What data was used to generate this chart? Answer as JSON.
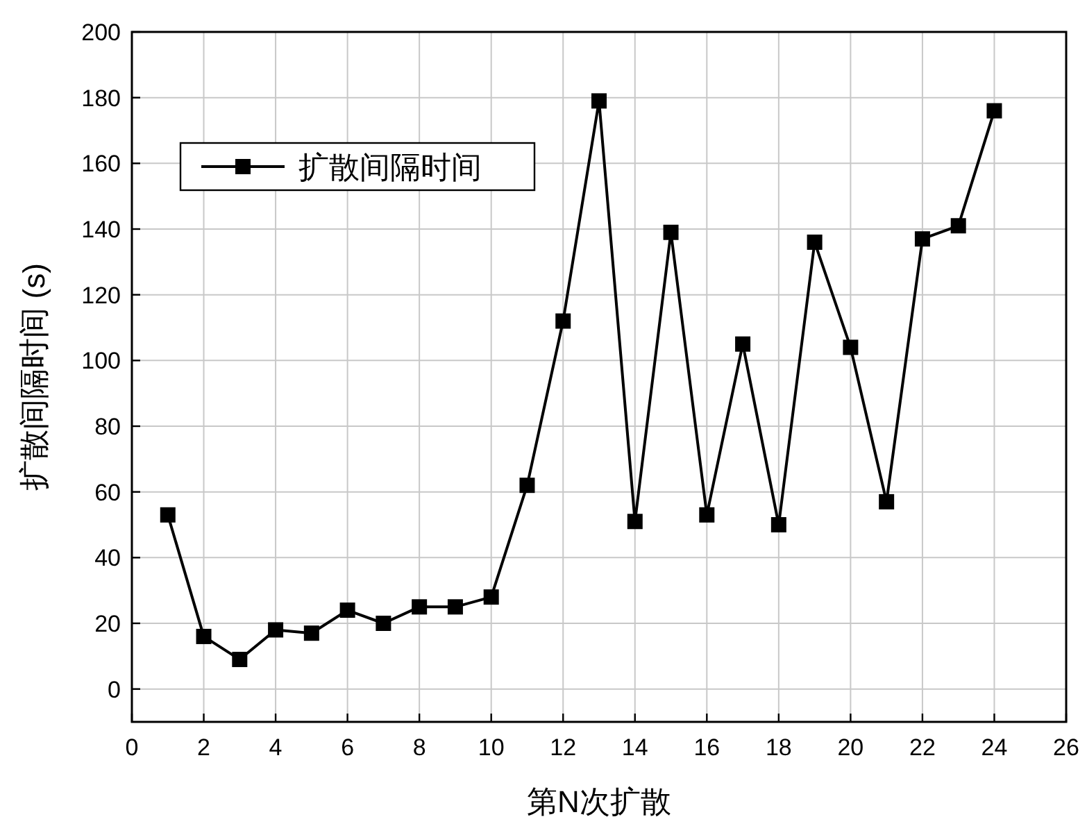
{
  "chart_data": {
    "type": "line",
    "xlabel": "第N次扩散",
    "ylabel": "扩散间隔时间 (s)",
    "x": [
      1,
      2,
      3,
      4,
      5,
      6,
      7,
      8,
      9,
      10,
      11,
      12,
      13,
      14,
      15,
      16,
      17,
      18,
      19,
      20,
      21,
      22,
      23,
      24
    ],
    "series": [
      {
        "name": "扩散间隔时间",
        "color": "#000000",
        "values": [
          53,
          16,
          9,
          18,
          17,
          24,
          20,
          25,
          25,
          28,
          62,
          112,
          179,
          51,
          139,
          53,
          105,
          50,
          136,
          104,
          57,
          137,
          141,
          176
        ]
      }
    ],
    "xlim": [
      0,
      26
    ],
    "xticks": [
      0,
      2,
      4,
      6,
      8,
      10,
      12,
      14,
      16,
      18,
      20,
      22,
      24,
      26
    ],
    "ylim": [
      -10,
      200
    ],
    "yticks": [
      0,
      20,
      40,
      60,
      80,
      100,
      120,
      140,
      160,
      180,
      200
    ],
    "grid": true,
    "legend": "top left",
    "marker": "square",
    "line_style": "solid"
  }
}
